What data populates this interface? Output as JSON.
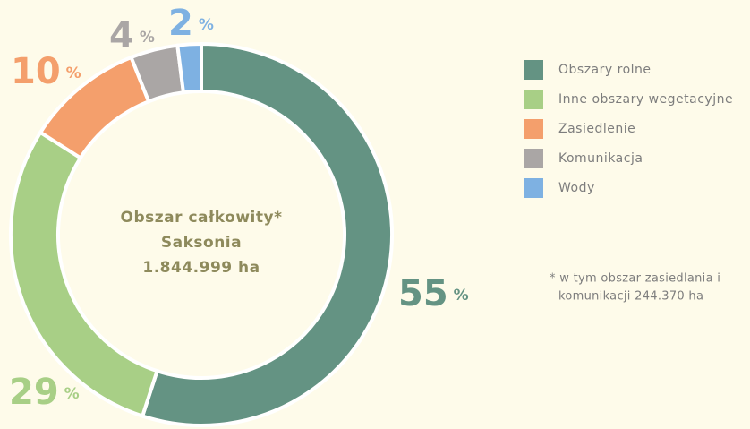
{
  "chart_data": {
    "type": "donut",
    "categories": [
      "Obszary rolne",
      "Inne obszary wegetacyjne",
      "Zasiedlenie",
      "Komunikacja",
      "Wody"
    ],
    "values": [
      55,
      29,
      10,
      4,
      2
    ],
    "unit": "%",
    "colors": [
      "#649383",
      "#a8cf86",
      "#f49f6c",
      "#aaa6a5",
      "#7eb1e2"
    ],
    "center_label": [
      "Obszar całkowity*",
      "Saksonia",
      "1.844.999 ha"
    ],
    "footnote": [
      "* w tym obszar zasiedlania i",
      "komunikacji 244.370 ha"
    ],
    "legend": "right"
  }
}
